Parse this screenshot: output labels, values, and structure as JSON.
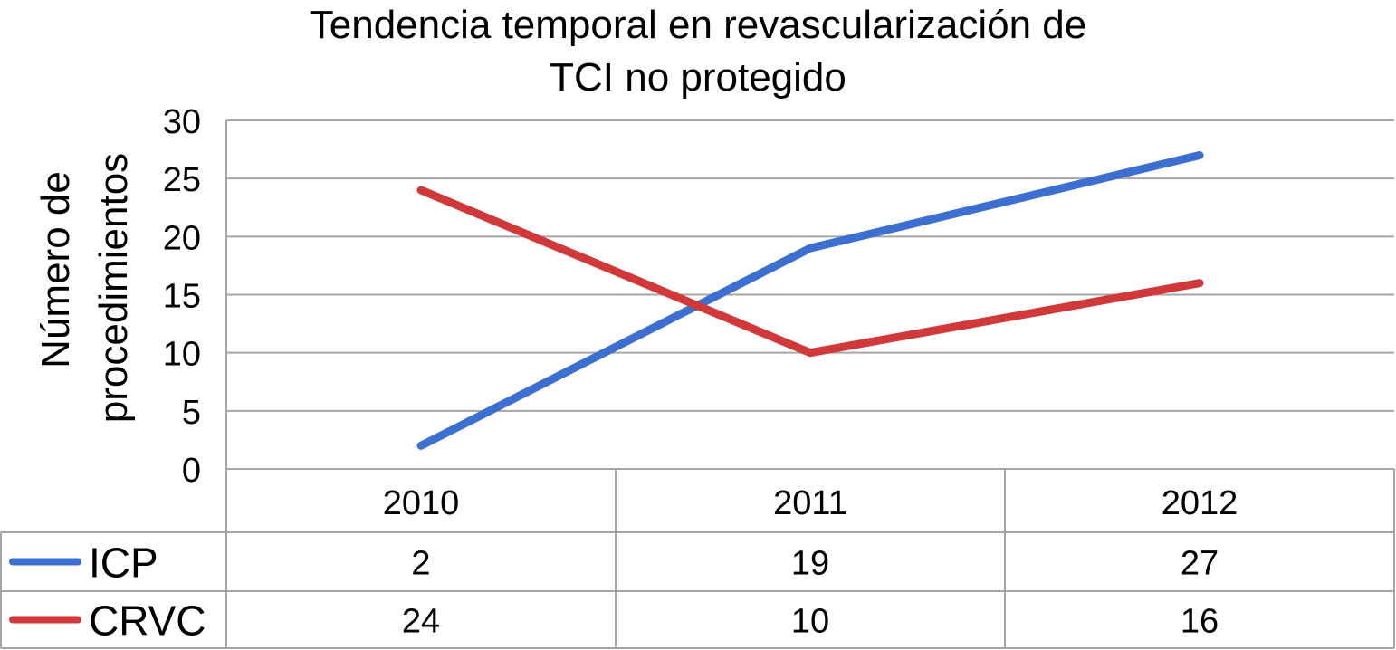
{
  "chart_data": {
    "type": "line",
    "title": [
      "Tendencia temporal en revascularización de",
      "TCI no protegido"
    ],
    "ylabel": [
      "Número de",
      "procedimientos"
    ],
    "xlabel": "",
    "categories": [
      "2010",
      "2011",
      "2012"
    ],
    "ylim": [
      0,
      30
    ],
    "yticks": [
      "0",
      "5",
      "10",
      "15",
      "20",
      "25",
      "30"
    ],
    "grid": true,
    "legend": "data-table-left",
    "series": [
      {
        "name": "ICP",
        "values": [
          2,
          19,
          27
        ],
        "color": "#3d6fd1"
      },
      {
        "name": "CRVC",
        "values": [
          24,
          10,
          16
        ],
        "color": "#d1383a"
      }
    ],
    "data_table": [
      {
        "series": "ICP",
        "cells": [
          "2",
          "19",
          "27"
        ]
      },
      {
        "series": "CRVC",
        "cells": [
          "24",
          "10",
          "16"
        ]
      }
    ]
  }
}
